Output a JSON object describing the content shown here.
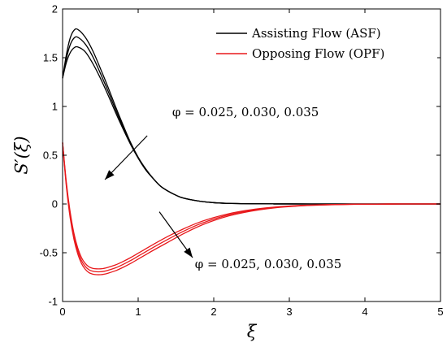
{
  "chart_data": {
    "type": "line",
    "xlabel": "ξ",
    "ylabel": "S′(ξ)",
    "xlim": [
      0,
      5
    ],
    "ylim": [
      -1,
      2
    ],
    "xticks": [
      0,
      1,
      2,
      3,
      4,
      5
    ],
    "yticks": [
      -1,
      -0.5,
      0,
      0.5,
      1,
      1.5,
      2
    ],
    "xtick_labels": [
      "0",
      "1",
      "2",
      "3",
      "4",
      "5"
    ],
    "ytick_labels": [
      "-1",
      "-0.5",
      "0",
      "0.5",
      "1",
      "1.5",
      "2"
    ],
    "grid": false,
    "legend_position": "top-right",
    "legend": [
      {
        "label": "Assisting Flow (ASF)",
        "color": "#000000"
      },
      {
        "label": "Opposing Flow (OPF)",
        "color": "#e8191c"
      }
    ],
    "annotations": [
      {
        "text": "φ = 0.025, 0.030, 0.035",
        "text_at": [
          1.45,
          0.9
        ],
        "arrow_from": [
          1.12,
          0.7
        ],
        "arrow_to": [
          0.56,
          0.25
        ]
      },
      {
        "text": "φ = 0.025, 0.030, 0.035",
        "text_at": [
          1.75,
          -0.66
        ],
        "arrow_from": [
          1.28,
          -0.08
        ],
        "arrow_to": [
          1.72,
          -0.55
        ]
      }
    ],
    "series": [
      {
        "group": "ASF",
        "color": "#000000",
        "x": [
          0,
          0.05,
          0.1,
          0.15,
          0.2,
          0.3,
          0.4,
          0.5,
          0.6,
          0.7,
          0.8,
          0.9,
          1.0,
          1.1,
          1.2,
          1.3,
          1.4,
          1.5,
          1.6,
          1.8,
          2.0,
          2.2,
          2.4,
          2.6,
          2.8,
          3.0,
          3.5,
          4.0,
          4.5,
          5.0
        ],
        "values": [
          1.29,
          1.53,
          1.7,
          1.78,
          1.79,
          1.71,
          1.57,
          1.39,
          1.2,
          1.0,
          0.81,
          0.63,
          0.48,
          0.36,
          0.26,
          0.18,
          0.13,
          0.09,
          0.06,
          0.03,
          0.014,
          0.006,
          0.003,
          0.0015,
          0.0007,
          0.0003,
          0.0,
          0.0,
          0.0,
          0.0
        ]
      },
      {
        "group": "ASF",
        "color": "#000000",
        "x": [
          0,
          0.05,
          0.1,
          0.15,
          0.2,
          0.3,
          0.4,
          0.5,
          0.6,
          0.7,
          0.8,
          0.9,
          1.0,
          1.1,
          1.2,
          1.3,
          1.4,
          1.5,
          1.6,
          1.8,
          2.0,
          2.2,
          2.4,
          2.6,
          2.8,
          3.0,
          3.5,
          4.0,
          4.5,
          5.0
        ],
        "values": [
          1.29,
          1.49,
          1.63,
          1.7,
          1.71,
          1.64,
          1.51,
          1.34,
          1.16,
          0.97,
          0.79,
          0.62,
          0.47,
          0.35,
          0.26,
          0.18,
          0.13,
          0.09,
          0.06,
          0.03,
          0.013,
          0.006,
          0.003,
          0.0015,
          0.0007,
          0.0003,
          0.0,
          0.0,
          0.0,
          0.0
        ]
      },
      {
        "group": "ASF",
        "color": "#000000",
        "x": [
          0,
          0.05,
          0.1,
          0.15,
          0.2,
          0.3,
          0.4,
          0.5,
          0.6,
          0.7,
          0.8,
          0.9,
          1.0,
          1.1,
          1.2,
          1.3,
          1.4,
          1.5,
          1.6,
          1.8,
          2.0,
          2.2,
          2.4,
          2.6,
          2.8,
          3.0,
          3.5,
          4.0,
          4.5,
          5.0
        ],
        "values": [
          1.29,
          1.45,
          1.55,
          1.6,
          1.61,
          1.56,
          1.44,
          1.29,
          1.12,
          0.94,
          0.77,
          0.61,
          0.47,
          0.35,
          0.26,
          0.18,
          0.13,
          0.09,
          0.06,
          0.03,
          0.013,
          0.006,
          0.003,
          0.0015,
          0.0007,
          0.0003,
          0.0,
          0.0,
          0.0,
          0.0
        ]
      },
      {
        "group": "OPF",
        "color": "#e8191c",
        "x": [
          0,
          0.05,
          0.1,
          0.15,
          0.2,
          0.25,
          0.3,
          0.35,
          0.4,
          0.45,
          0.5,
          0.55,
          0.6,
          0.7,
          0.8,
          0.9,
          1.0,
          1.1,
          1.2,
          1.4,
          1.6,
          1.8,
          2.0,
          2.2,
          2.4,
          2.6,
          2.8,
          3.0,
          3.2,
          3.5,
          3.8,
          4.0,
          4.5,
          5.0
        ],
        "values": [
          0.63,
          0.22,
          -0.08,
          -0.3,
          -0.45,
          -0.55,
          -0.61,
          -0.645,
          -0.66,
          -0.665,
          -0.665,
          -0.66,
          -0.65,
          -0.625,
          -0.59,
          -0.55,
          -0.505,
          -0.46,
          -0.415,
          -0.33,
          -0.255,
          -0.19,
          -0.14,
          -0.1,
          -0.07,
          -0.048,
          -0.032,
          -0.021,
          -0.013,
          -0.007,
          -0.003,
          -0.002,
          0.0,
          0.0
        ]
      },
      {
        "group": "OPF",
        "color": "#e8191c",
        "x": [
          0,
          0.05,
          0.1,
          0.15,
          0.2,
          0.25,
          0.3,
          0.35,
          0.4,
          0.45,
          0.5,
          0.55,
          0.6,
          0.7,
          0.8,
          0.9,
          1.0,
          1.1,
          1.2,
          1.4,
          1.6,
          1.8,
          2.0,
          2.2,
          2.4,
          2.6,
          2.8,
          3.0,
          3.2,
          3.5,
          3.8,
          4.0,
          4.5,
          5.0
        ],
        "values": [
          0.63,
          0.2,
          -0.11,
          -0.33,
          -0.48,
          -0.58,
          -0.64,
          -0.675,
          -0.69,
          -0.695,
          -0.695,
          -0.69,
          -0.68,
          -0.655,
          -0.62,
          -0.58,
          -0.535,
          -0.49,
          -0.445,
          -0.36,
          -0.28,
          -0.21,
          -0.155,
          -0.11,
          -0.078,
          -0.054,
          -0.036,
          -0.024,
          -0.015,
          -0.008,
          -0.004,
          -0.002,
          0.0,
          0.0
        ]
      },
      {
        "group": "OPF",
        "color": "#e8191c",
        "x": [
          0,
          0.05,
          0.1,
          0.15,
          0.2,
          0.25,
          0.3,
          0.35,
          0.4,
          0.45,
          0.5,
          0.55,
          0.6,
          0.7,
          0.8,
          0.9,
          1.0,
          1.1,
          1.2,
          1.4,
          1.6,
          1.8,
          2.0,
          2.2,
          2.4,
          2.6,
          2.8,
          3.0,
          3.2,
          3.5,
          3.8,
          4.0,
          4.5,
          5.0
        ],
        "values": [
          0.63,
          0.18,
          -0.14,
          -0.36,
          -0.51,
          -0.61,
          -0.67,
          -0.705,
          -0.72,
          -0.725,
          -0.725,
          -0.72,
          -0.71,
          -0.685,
          -0.65,
          -0.61,
          -0.565,
          -0.52,
          -0.475,
          -0.39,
          -0.305,
          -0.23,
          -0.17,
          -0.122,
          -0.087,
          -0.06,
          -0.04,
          -0.027,
          -0.017,
          -0.009,
          -0.004,
          -0.002,
          0.0,
          0.0
        ]
      }
    ]
  }
}
